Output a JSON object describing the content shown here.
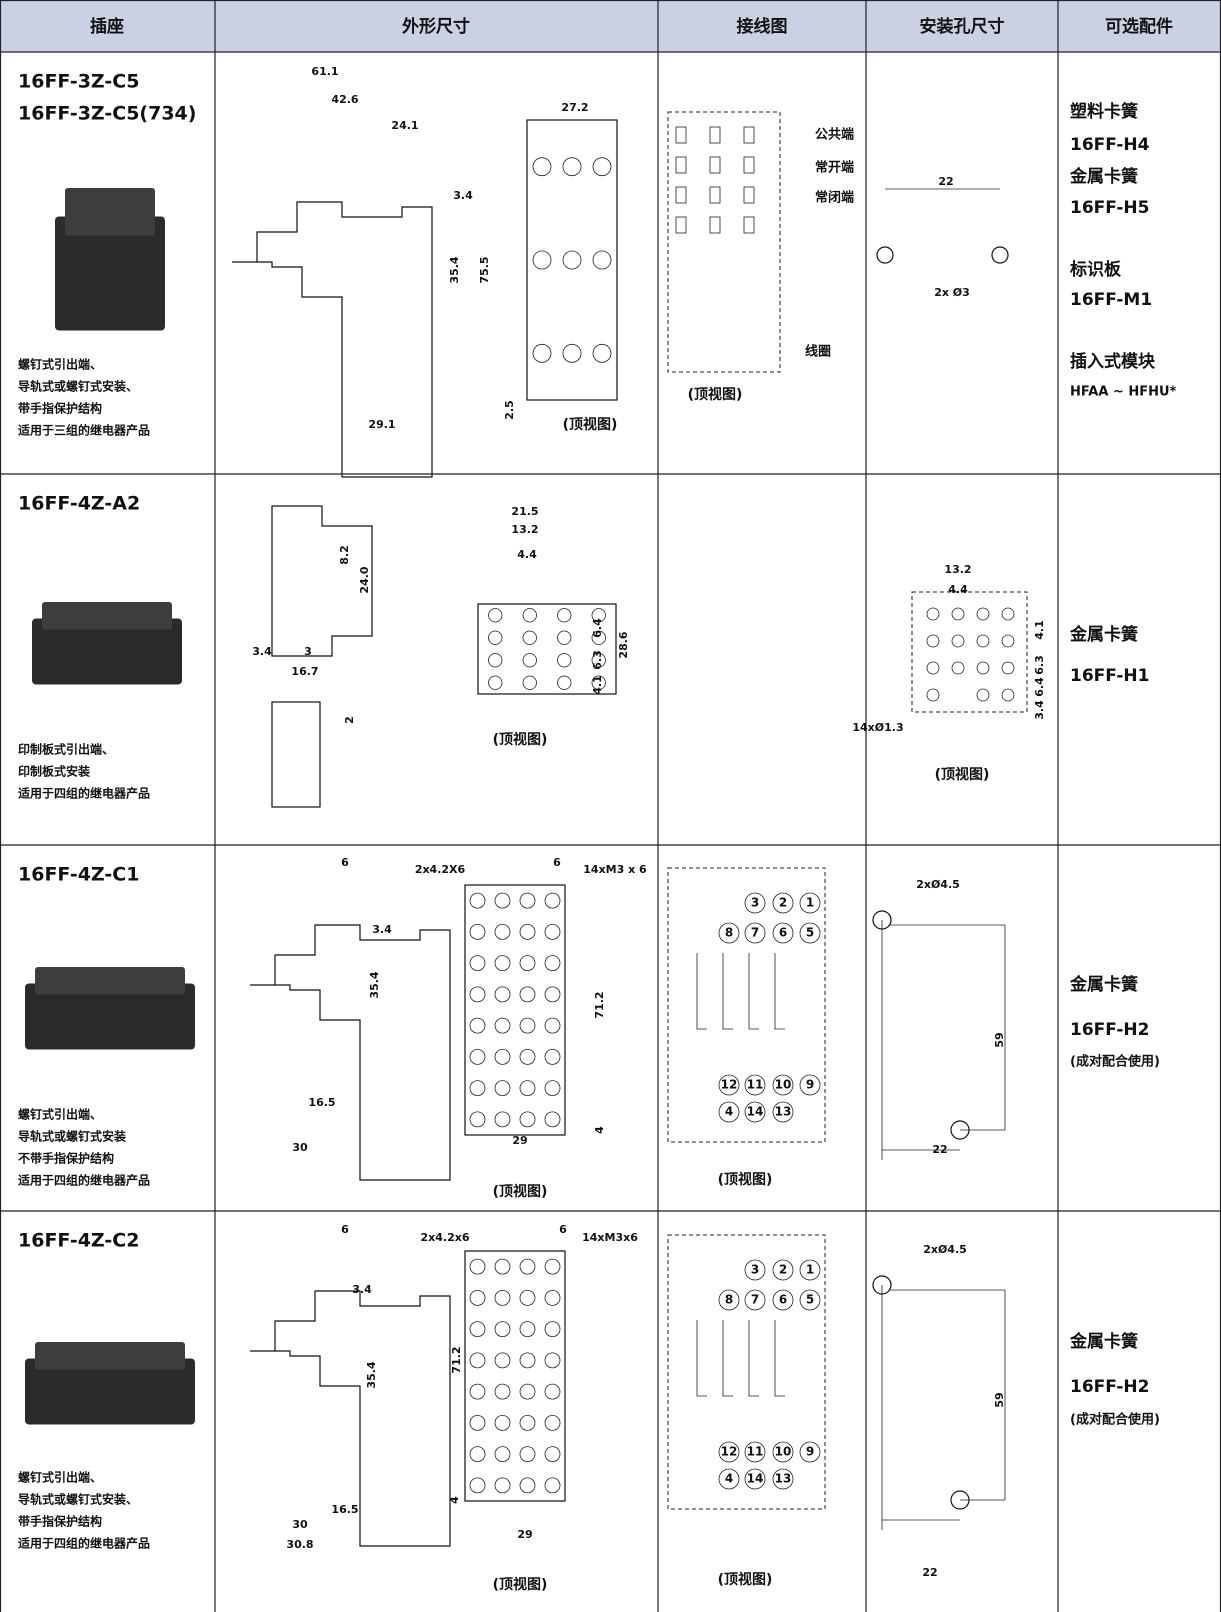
{
  "header": [
    "插座",
    "外形尺寸",
    "接线图",
    "安装孔尺寸",
    "可选配件"
  ],
  "rows": [
    {
      "model": [
        "16FF-3Z-C5",
        "16FF-3Z-C5(734)"
      ],
      "description": [
        "螺钉式引出端、",
        "导轨式或螺钉式安装、",
        "带手指保护结构",
        "适用于三组的继电器产品"
      ],
      "outline_dims": [
        "61.1",
        "42.6",
        "24.1",
        "3.4",
        "35.4",
        "75.5",
        "29.1",
        "27.2",
        "2.5"
      ],
      "outline_caption": "(顶视图)",
      "wiring_labels": [
        "公共端",
        "常开端",
        "常闭端",
        "线圈"
      ],
      "wiring_caption": "(顶视图)",
      "mounting_dims": [
        "22",
        "2x Ø3"
      ],
      "accessories": [
        "塑料卡簧",
        "16FF-H4",
        "金属卡簧",
        "16FF-H5",
        "标识板",
        "16FF-M1",
        "插入式模块",
        "HFAA ~ HFHU*"
      ]
    },
    {
      "model": [
        "16FF-4Z-A2"
      ],
      "description": [
        "印制板式引出端、",
        "印制板式安装",
        "适用于四组的继电器产品"
      ],
      "outline_dims": [
        "8.2",
        "24.0",
        "3.4",
        "3",
        "16.7",
        "2",
        "21.5",
        "13.2",
        "4.4",
        "6.4",
        "6.3",
        "4.1",
        "28.6"
      ],
      "outline_caption": "(顶视图)",
      "mounting_dims": [
        "13.2",
        "4.4",
        "14xØ1.3",
        "4.1",
        "6.3",
        "6.4",
        "3.4"
      ],
      "mounting_caption": "(顶视图)",
      "accessories": [
        "金属卡簧",
        "16FF-H1"
      ]
    },
    {
      "model": [
        "16FF-4Z-C1"
      ],
      "description": [
        "螺钉式引出端、",
        "导轨式或螺钉式安装",
        "不带手指保护结构",
        "适用于四组的继电器产品"
      ],
      "outline_dims": [
        "6",
        "3.4",
        "35.4",
        "16.5",
        "30",
        "2x4.2X6",
        "6",
        "14xM3 x 6",
        "71.2",
        "4",
        "29"
      ],
      "outline_caption": "(顶视图)",
      "wiring_pins": [
        "3",
        "2",
        "1",
        "8",
        "7",
        "6",
        "5",
        "12",
        "11",
        "10",
        "9",
        "4",
        "14",
        "13"
      ],
      "wiring_caption": "(顶视图)",
      "mounting_dims": [
        "2xØ4.5",
        "59",
        "22"
      ],
      "accessories": [
        "金属卡簧",
        "16FF-H2",
        "(成对配合使用)"
      ]
    },
    {
      "model": [
        "16FF-4Z-C2"
      ],
      "description": [
        "螺钉式引出端、",
        "导轨式或螺钉式安装、",
        "带手指保护结构",
        "适用于四组的继电器产品"
      ],
      "outline_dims": [
        "6",
        "3.4",
        "35.4",
        "16.5",
        "30",
        "30.8",
        "2x4.2x6",
        "6",
        "14xM3x6",
        "71.2",
        "4",
        "29"
      ],
      "outline_caption": "(顶视图)",
      "wiring_pins": [
        "3",
        "2",
        "1",
        "8",
        "7",
        "6",
        "5",
        "12",
        "11",
        "10",
        "9",
        "4",
        "14",
        "13"
      ],
      "wiring_caption": "(顶视图)",
      "mounting_dims": [
        "2xØ4.5",
        "59",
        "22"
      ],
      "accessories": [
        "金属卡簧",
        "16FF-H2",
        "(成对配合使用)"
      ]
    }
  ]
}
